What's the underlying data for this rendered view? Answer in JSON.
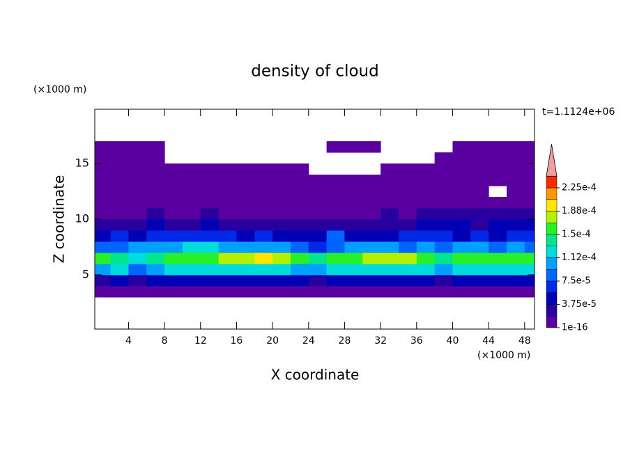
{
  "chart_data": {
    "type": "contour",
    "title": "density of cloud",
    "x_unit": "(×1000 m)",
    "y_unit": "(×1000 m)",
    "annotation": "t=1.1124e+06",
    "xlabel": "X coordinate",
    "ylabel": "Z coordinate",
    "xlim": [
      0.25,
      49.1
    ],
    "ylim": [
      0.125,
      19.875
    ],
    "xticks": [
      4,
      8,
      12,
      16,
      20,
      24,
      28,
      32,
      36,
      40,
      44,
      48
    ],
    "yticks": [
      5,
      10,
      15
    ],
    "x": [
      1,
      3,
      5,
      7,
      9,
      11,
      13,
      15,
      17,
      19,
      21,
      23,
      25,
      27,
      29,
      31,
      33,
      35,
      37,
      39,
      41,
      43,
      45,
      47,
      49
    ],
    "z": [
      3.5,
      4.5,
      5.5,
      6.5,
      7.5,
      8.5,
      9.5,
      10.5,
      11.5,
      12.5,
      13.5,
      14.5,
      15.5,
      16.5
    ],
    "values": [
      [
        1.2e-05,
        1.2e-05,
        1.2e-05,
        1.2e-05,
        1.2e-05,
        1.2e-05,
        1.2e-05,
        1.2e-05,
        1.2e-05,
        1.2e-05,
        1.2e-05,
        1.2e-05,
        1.2e-05,
        1.2e-05,
        1.2e-05,
        1.2e-05,
        1.2e-05,
        1.2e-05,
        1.2e-05,
        1.2e-05,
        1.2e-05,
        1.2e-05,
        1.2e-05,
        1.2e-05,
        1.2e-05
      ],
      [
        3.5e-05,
        4.5e-05,
        2.5e-05,
        4e-05,
        5e-05,
        4.5e-05,
        4e-05,
        5e-05,
        4.5e-05,
        4e-05,
        5e-05,
        4.5e-05,
        3e-05,
        4.5e-05,
        5e-05,
        4e-05,
        4.5e-05,
        5e-05,
        4e-05,
        3e-05,
        4.5e-05,
        5e-05,
        4e-05,
        4.5e-05,
        5e-05
      ],
      [
        0.00011,
        0.00012,
        8e-05,
        0.000105,
        0.000115,
        0.00012,
        0.000125,
        0.00012,
        0.00013,
        0.000125,
        0.00012,
        0.00011,
        0.000105,
        0.00012,
        0.000115,
        0.00012,
        0.000125,
        0.00013,
        0.00012,
        0.000105,
        0.00012,
        0.000125,
        0.00012,
        0.000115,
        0.00012
      ],
      [
        0.00015,
        0.000135,
        0.00013,
        0.000145,
        0.000155,
        0.00016,
        0.000165,
        0.00017,
        0.000175,
        0.000195,
        0.00017,
        0.000155,
        0.00014,
        0.00015,
        0.00016,
        0.00017,
        0.000175,
        0.00018,
        0.00015,
        0.000135,
        0.00015,
        0.00016,
        0.000155,
        0.000165,
        0.00016
      ],
      [
        9e-05,
        8e-05,
        9.5e-05,
        0.000105,
        0.00011,
        0.000115,
        0.00012,
        0.00011,
        0.000105,
        0.0001,
        9.5e-05,
        8e-05,
        7e-05,
        9e-05,
        0.0001,
        0.000105,
        0.0001,
        8.5e-05,
        0.0001,
        9e-05,
        0.000105,
        9.5e-05,
        9e-05,
        0.0001,
        9e-05
      ],
      [
        5e-05,
        6e-05,
        5.5e-05,
        6.5e-05,
        7e-05,
        6.5e-05,
        6e-05,
        6.5e-05,
        5.5e-05,
        6e-05,
        5e-05,
        4.5e-05,
        4e-05,
        8e-05,
        5e-05,
        4.5e-05,
        5e-05,
        6e-05,
        6.5e-05,
        6e-05,
        5.5e-05,
        6e-05,
        5.5e-05,
        6e-05,
        6.5e-05
      ],
      [
        3e-05,
        3.5e-05,
        3e-05,
        4e-05,
        3.5e-05,
        3e-05,
        4e-05,
        3.5e-05,
        3e-05,
        2.5e-05,
        3e-05,
        2e-05,
        2.5e-05,
        3.5e-05,
        2.5e-05,
        3e-05,
        3.5e-05,
        3e-05,
        4e-05,
        4.5e-05,
        4e-05,
        3.5e-05,
        4e-05,
        4.5e-05,
        4e-05
      ],
      [
        1e-05,
        1.5e-05,
        1e-05,
        2e-05,
        1.5e-05,
        1e-05,
        2e-05,
        1.5e-05,
        1e-05,
        1.5e-05,
        1e-05,
        5e-06,
        1e-05,
        1.5e-05,
        1e-05,
        1.5e-05,
        2e-05,
        1.5e-05,
        2e-05,
        2.5e-05,
        2e-05,
        2.5e-05,
        2e-05,
        2.5e-05,
        3e-05
      ],
      [
        5e-06,
        5e-06,
        5e-06,
        1e-05,
        5e-06,
        5e-06,
        5e-06,
        5e-06,
        5e-06,
        5e-06,
        5e-06,
        5e-06,
        5e-06,
        5e-06,
        5e-06,
        5e-06,
        5e-06,
        1e-05,
        5e-06,
        1e-05,
        5e-06,
        1e-05,
        1e-05,
        5e-06,
        1e-05
      ],
      [
        5e-06,
        5e-06,
        5e-06,
        5e-06,
        5e-06,
        5e-06,
        5e-06,
        5e-06,
        5e-06,
        5e-06,
        5e-06,
        5e-06,
        5e-06,
        5e-06,
        5e-06,
        5e-06,
        5e-06,
        5e-06,
        5e-06,
        5e-06,
        5e-06,
        5e-06,
        null,
        5e-06,
        5e-06
      ],
      [
        5e-06,
        5e-06,
        5e-06,
        5e-06,
        5e-06,
        5e-06,
        5e-06,
        5e-06,
        5e-06,
        5e-06,
        5e-06,
        5e-06,
        5e-06,
        5e-06,
        5e-06,
        5e-06,
        5e-06,
        5e-06,
        5e-06,
        5e-06,
        5e-06,
        5e-06,
        5e-06,
        5e-06,
        5e-06
      ],
      [
        5e-06,
        5e-06,
        5e-06,
        5e-06,
        5e-06,
        5e-06,
        5e-06,
        5e-06,
        5e-06,
        5e-06,
        5e-06,
        5e-06,
        null,
        null,
        null,
        null,
        5e-06,
        5e-06,
        5e-06,
        5e-06,
        5e-06,
        5e-06,
        5e-06,
        5e-06,
        5e-06
      ],
      [
        5e-06,
        5e-06,
        5e-06,
        5e-06,
        null,
        null,
        null,
        null,
        null,
        null,
        null,
        null,
        null,
        null,
        null,
        null,
        null,
        null,
        null,
        5e-06,
        5e-06,
        5e-06,
        5e-06,
        5e-06,
        5e-06
      ],
      [
        5e-06,
        5e-06,
        5e-06,
        5e-06,
        null,
        null,
        null,
        null,
        null,
        null,
        null,
        null,
        null,
        5e-06,
        5e-06,
        5e-06,
        null,
        null,
        null,
        null,
        5e-06,
        5e-06,
        5e-06,
        5e-06,
        5e-06
      ]
    ],
    "levels": [
      1e-16,
      1.875e-05,
      3.75e-05,
      5.625e-05,
      7.5e-05,
      9.375e-05,
      0.0001125,
      0.00013125,
      0.00015,
      0.00016875,
      0.0001875,
      0.00020625,
      0.000225,
      0.00024375
    ],
    "colors": [
      "#5a00a0",
      "#2800a0",
      "#0000b4",
      "#0028e6",
      "#0064ff",
      "#00a0ff",
      "#00dcdc",
      "#00e68c",
      "#28f028",
      "#b4f000",
      "#ffe600",
      "#ff9600",
      "#ff2800"
    ],
    "extend_color": "#f0a0a0",
    "cbar_ticks": [
      {
        "value": 1e-16,
        "label": "1e-16"
      },
      {
        "value": 3.75e-05,
        "label": "3.75e-5"
      },
      {
        "value": 7.5e-05,
        "label": "7.5e-5"
      },
      {
        "value": 0.0001125,
        "label": "1.12e-4"
      },
      {
        "value": 0.00015,
        "label": "1.5e-4"
      },
      {
        "value": 0.0001875,
        "label": "1.88e-4"
      },
      {
        "value": 0.000225,
        "label": "2.25e-4"
      }
    ]
  }
}
